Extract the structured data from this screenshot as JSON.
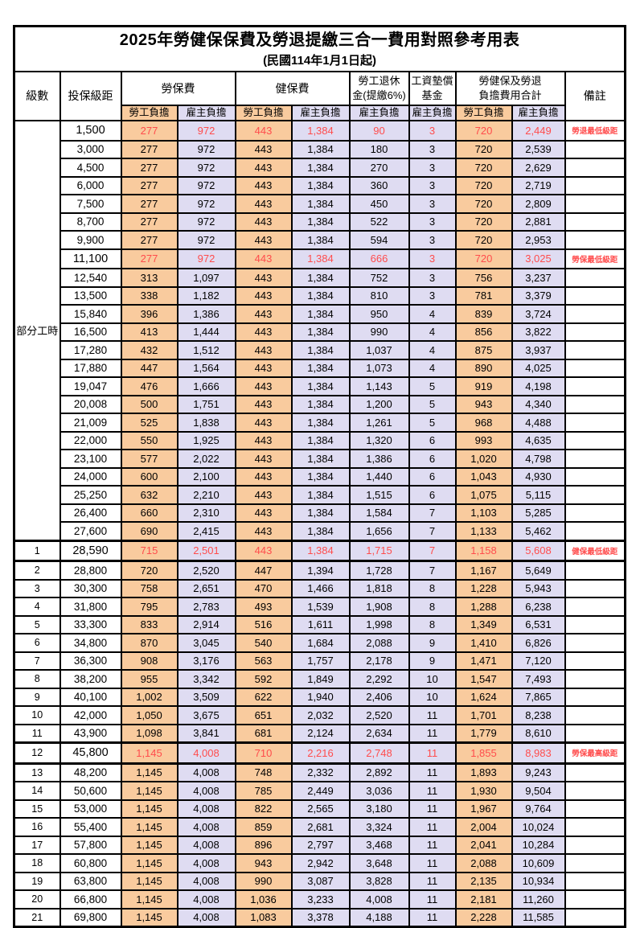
{
  "title": {
    "line1": "2025年勞健保保費及勞退提繳三合一費用對照參考用表",
    "line2": "(民國114年1月1日起)"
  },
  "header": {
    "level": "級數",
    "salary": "投保級距",
    "labor_group": "勞保費",
    "health_group": "健保費",
    "pension_group": [
      "勞工退休",
      "金(提繳6%)"
    ],
    "fund_group": [
      "工資墊償",
      "基金"
    ],
    "total_group": [
      "勞健保及勞退",
      "負擔費用合計"
    ],
    "note": "備註",
    "employee": "勞工負擔",
    "employer": "雇主負擔"
  },
  "part_time_label": "部分工時",
  "colors": {
    "employee_bg": "#F9CB9E",
    "employer_bg": "#DFDCF2",
    "highlight_text": "#FF4C4C",
    "border": "#000000"
  },
  "rows": [
    {
      "level": "",
      "salary": "1,500",
      "values": [
        "277",
        "972",
        "443",
        "1,384",
        "90",
        "3",
        "720",
        "2,449"
      ],
      "note": "勞退最低級距",
      "red": true,
      "thick": false
    },
    {
      "level": "",
      "salary": "3,000",
      "values": [
        "277",
        "972",
        "443",
        "1,384",
        "180",
        "3",
        "720",
        "2,539"
      ],
      "note": "",
      "red": false,
      "thick": false
    },
    {
      "level": "",
      "salary": "4,500",
      "values": [
        "277",
        "972",
        "443",
        "1,384",
        "270",
        "3",
        "720",
        "2,629"
      ],
      "note": "",
      "red": false,
      "thick": false
    },
    {
      "level": "",
      "salary": "6,000",
      "values": [
        "277",
        "972",
        "443",
        "1,384",
        "360",
        "3",
        "720",
        "2,719"
      ],
      "note": "",
      "red": false,
      "thick": false
    },
    {
      "level": "",
      "salary": "7,500",
      "values": [
        "277",
        "972",
        "443",
        "1,384",
        "450",
        "3",
        "720",
        "2,809"
      ],
      "note": "",
      "red": false,
      "thick": false
    },
    {
      "level": "",
      "salary": "8,700",
      "values": [
        "277",
        "972",
        "443",
        "1,384",
        "522",
        "3",
        "720",
        "2,881"
      ],
      "note": "",
      "red": false,
      "thick": false
    },
    {
      "level": "",
      "salary": "9,900",
      "values": [
        "277",
        "972",
        "443",
        "1,384",
        "594",
        "3",
        "720",
        "2,953"
      ],
      "note": "",
      "red": false,
      "thick": false
    },
    {
      "level": "",
      "salary": "11,100",
      "values": [
        "277",
        "972",
        "443",
        "1,384",
        "666",
        "3",
        "720",
        "3,025"
      ],
      "note": "勞保最低級距",
      "red": true,
      "thick": false
    },
    {
      "level": "",
      "salary": "12,540",
      "values": [
        "313",
        "1,097",
        "443",
        "1,384",
        "752",
        "3",
        "756",
        "3,237"
      ],
      "note": "",
      "red": false,
      "thick": false
    },
    {
      "level": "",
      "salary": "13,500",
      "values": [
        "338",
        "1,182",
        "443",
        "1,384",
        "810",
        "3",
        "781",
        "3,379"
      ],
      "note": "",
      "red": false,
      "thick": false
    },
    {
      "level": "",
      "salary": "15,840",
      "values": [
        "396",
        "1,386",
        "443",
        "1,384",
        "950",
        "4",
        "839",
        "3,724"
      ],
      "note": "",
      "red": false,
      "thick": false
    },
    {
      "level": "",
      "salary": "16,500",
      "values": [
        "413",
        "1,444",
        "443",
        "1,384",
        "990",
        "4",
        "856",
        "3,822"
      ],
      "note": "",
      "red": false,
      "thick": false
    },
    {
      "level": "",
      "salary": "17,280",
      "values": [
        "432",
        "1,512",
        "443",
        "1,384",
        "1,037",
        "4",
        "875",
        "3,937"
      ],
      "note": "",
      "red": false,
      "thick": false
    },
    {
      "level": "",
      "salary": "17,880",
      "values": [
        "447",
        "1,564",
        "443",
        "1,384",
        "1,073",
        "4",
        "890",
        "4,025"
      ],
      "note": "",
      "red": false,
      "thick": false
    },
    {
      "level": "",
      "salary": "19,047",
      "values": [
        "476",
        "1,666",
        "443",
        "1,384",
        "1,143",
        "5",
        "919",
        "4,198"
      ],
      "note": "",
      "red": false,
      "thick": false
    },
    {
      "level": "",
      "salary": "20,008",
      "values": [
        "500",
        "1,751",
        "443",
        "1,384",
        "1,200",
        "5",
        "943",
        "4,340"
      ],
      "note": "",
      "red": false,
      "thick": false
    },
    {
      "level": "",
      "salary": "21,009",
      "values": [
        "525",
        "1,838",
        "443",
        "1,384",
        "1,261",
        "5",
        "968",
        "4,488"
      ],
      "note": "",
      "red": false,
      "thick": false
    },
    {
      "level": "",
      "salary": "22,000",
      "values": [
        "550",
        "1,925",
        "443",
        "1,384",
        "1,320",
        "6",
        "993",
        "4,635"
      ],
      "note": "",
      "red": false,
      "thick": false
    },
    {
      "level": "",
      "salary": "23,100",
      "values": [
        "577",
        "2,022",
        "443",
        "1,384",
        "1,386",
        "6",
        "1,020",
        "4,798"
      ],
      "note": "",
      "red": false,
      "thick": false
    },
    {
      "level": "",
      "salary": "24,000",
      "values": [
        "600",
        "2,100",
        "443",
        "1,384",
        "1,440",
        "6",
        "1,043",
        "4,930"
      ],
      "note": "",
      "red": false,
      "thick": false
    },
    {
      "level": "",
      "salary": "25,250",
      "values": [
        "632",
        "2,210",
        "443",
        "1,384",
        "1,515",
        "6",
        "1,075",
        "5,115"
      ],
      "note": "",
      "red": false,
      "thick": false
    },
    {
      "level": "",
      "salary": "26,400",
      "values": [
        "660",
        "2,310",
        "443",
        "1,384",
        "1,584",
        "7",
        "1,103",
        "5,285"
      ],
      "note": "",
      "red": false,
      "thick": false
    },
    {
      "level": "",
      "salary": "27,600",
      "values": [
        "690",
        "2,415",
        "443",
        "1,384",
        "1,656",
        "7",
        "1,133",
        "5,462"
      ],
      "note": "",
      "red": false,
      "thick": false
    },
    {
      "level": "1",
      "salary": "28,590",
      "values": [
        "715",
        "2,501",
        "443",
        "1,384",
        "1,715",
        "7",
        "1,158",
        "5,608"
      ],
      "note": "健保最低級距",
      "red": true,
      "thick": true
    },
    {
      "level": "2",
      "salary": "28,800",
      "values": [
        "720",
        "2,520",
        "447",
        "1,394",
        "1,728",
        "7",
        "1,167",
        "5,649"
      ],
      "note": "",
      "red": false,
      "thick": false
    },
    {
      "level": "3",
      "salary": "30,300",
      "values": [
        "758",
        "2,651",
        "470",
        "1,466",
        "1,818",
        "8",
        "1,228",
        "5,943"
      ],
      "note": "",
      "red": false,
      "thick": false
    },
    {
      "level": "4",
      "salary": "31,800",
      "values": [
        "795",
        "2,783",
        "493",
        "1,539",
        "1,908",
        "8",
        "1,288",
        "6,238"
      ],
      "note": "",
      "red": false,
      "thick": false
    },
    {
      "level": "5",
      "salary": "33,300",
      "values": [
        "833",
        "2,914",
        "516",
        "1,611",
        "1,998",
        "8",
        "1,349",
        "6,531"
      ],
      "note": "",
      "red": false,
      "thick": false
    },
    {
      "level": "6",
      "salary": "34,800",
      "values": [
        "870",
        "3,045",
        "540",
        "1,684",
        "2,088",
        "9",
        "1,410",
        "6,826"
      ],
      "note": "",
      "red": false,
      "thick": false
    },
    {
      "level": "7",
      "salary": "36,300",
      "values": [
        "908",
        "3,176",
        "563",
        "1,757",
        "2,178",
        "9",
        "1,471",
        "7,120"
      ],
      "note": "",
      "red": false,
      "thick": false
    },
    {
      "level": "8",
      "salary": "38,200",
      "values": [
        "955",
        "3,342",
        "592",
        "1,849",
        "2,292",
        "10",
        "1,547",
        "7,493"
      ],
      "note": "",
      "red": false,
      "thick": false
    },
    {
      "level": "9",
      "salary": "40,100",
      "values": [
        "1,002",
        "3,509",
        "622",
        "1,940",
        "2,406",
        "10",
        "1,624",
        "7,865"
      ],
      "note": "",
      "red": false,
      "thick": false
    },
    {
      "level": "10",
      "salary": "42,000",
      "values": [
        "1,050",
        "3,675",
        "651",
        "2,032",
        "2,520",
        "11",
        "1,701",
        "8,238"
      ],
      "note": "",
      "red": false,
      "thick": false
    },
    {
      "level": "11",
      "salary": "43,900",
      "values": [
        "1,098",
        "3,841",
        "681",
        "2,124",
        "2,634",
        "11",
        "1,779",
        "8,610"
      ],
      "note": "",
      "red": false,
      "thick": false
    },
    {
      "level": "12",
      "salary": "45,800",
      "values": [
        "1,145",
        "4,008",
        "710",
        "2,216",
        "2,748",
        "11",
        "1,855",
        "8,983"
      ],
      "note": "勞保最高級距",
      "red": true,
      "thick": true
    },
    {
      "level": "13",
      "salary": "48,200",
      "values": [
        "1,145",
        "4,008",
        "748",
        "2,332",
        "2,892",
        "11",
        "1,893",
        "9,243"
      ],
      "note": "",
      "red": false,
      "thick": false
    },
    {
      "level": "14",
      "salary": "50,600",
      "values": [
        "1,145",
        "4,008",
        "785",
        "2,449",
        "3,036",
        "11",
        "1,930",
        "9,504"
      ],
      "note": "",
      "red": false,
      "thick": false
    },
    {
      "level": "15",
      "salary": "53,000",
      "values": [
        "1,145",
        "4,008",
        "822",
        "2,565",
        "3,180",
        "11",
        "1,967",
        "9,764"
      ],
      "note": "",
      "red": false,
      "thick": false
    },
    {
      "level": "16",
      "salary": "55,400",
      "values": [
        "1,145",
        "4,008",
        "859",
        "2,681",
        "3,324",
        "11",
        "2,004",
        "10,024"
      ],
      "note": "",
      "red": false,
      "thick": false
    },
    {
      "level": "17",
      "salary": "57,800",
      "values": [
        "1,145",
        "4,008",
        "896",
        "2,797",
        "3,468",
        "11",
        "2,041",
        "10,284"
      ],
      "note": "",
      "red": false,
      "thick": false
    },
    {
      "level": "18",
      "salary": "60,800",
      "values": [
        "1,145",
        "4,008",
        "943",
        "2,942",
        "3,648",
        "11",
        "2,088",
        "10,609"
      ],
      "note": "",
      "red": false,
      "thick": false
    },
    {
      "level": "19",
      "salary": "63,800",
      "values": [
        "1,145",
        "4,008",
        "990",
        "3,087",
        "3,828",
        "11",
        "2,135",
        "10,934"
      ],
      "note": "",
      "red": false,
      "thick": false
    },
    {
      "level": "20",
      "salary": "66,800",
      "values": [
        "1,145",
        "4,008",
        "1,036",
        "3,233",
        "4,008",
        "11",
        "2,181",
        "11,260"
      ],
      "note": "",
      "red": false,
      "thick": false
    },
    {
      "level": "21",
      "salary": "69,800",
      "values": [
        "1,145",
        "4,008",
        "1,083",
        "3,378",
        "4,188",
        "11",
        "2,228",
        "11,585"
      ],
      "note": "",
      "red": false,
      "thick": false
    }
  ]
}
